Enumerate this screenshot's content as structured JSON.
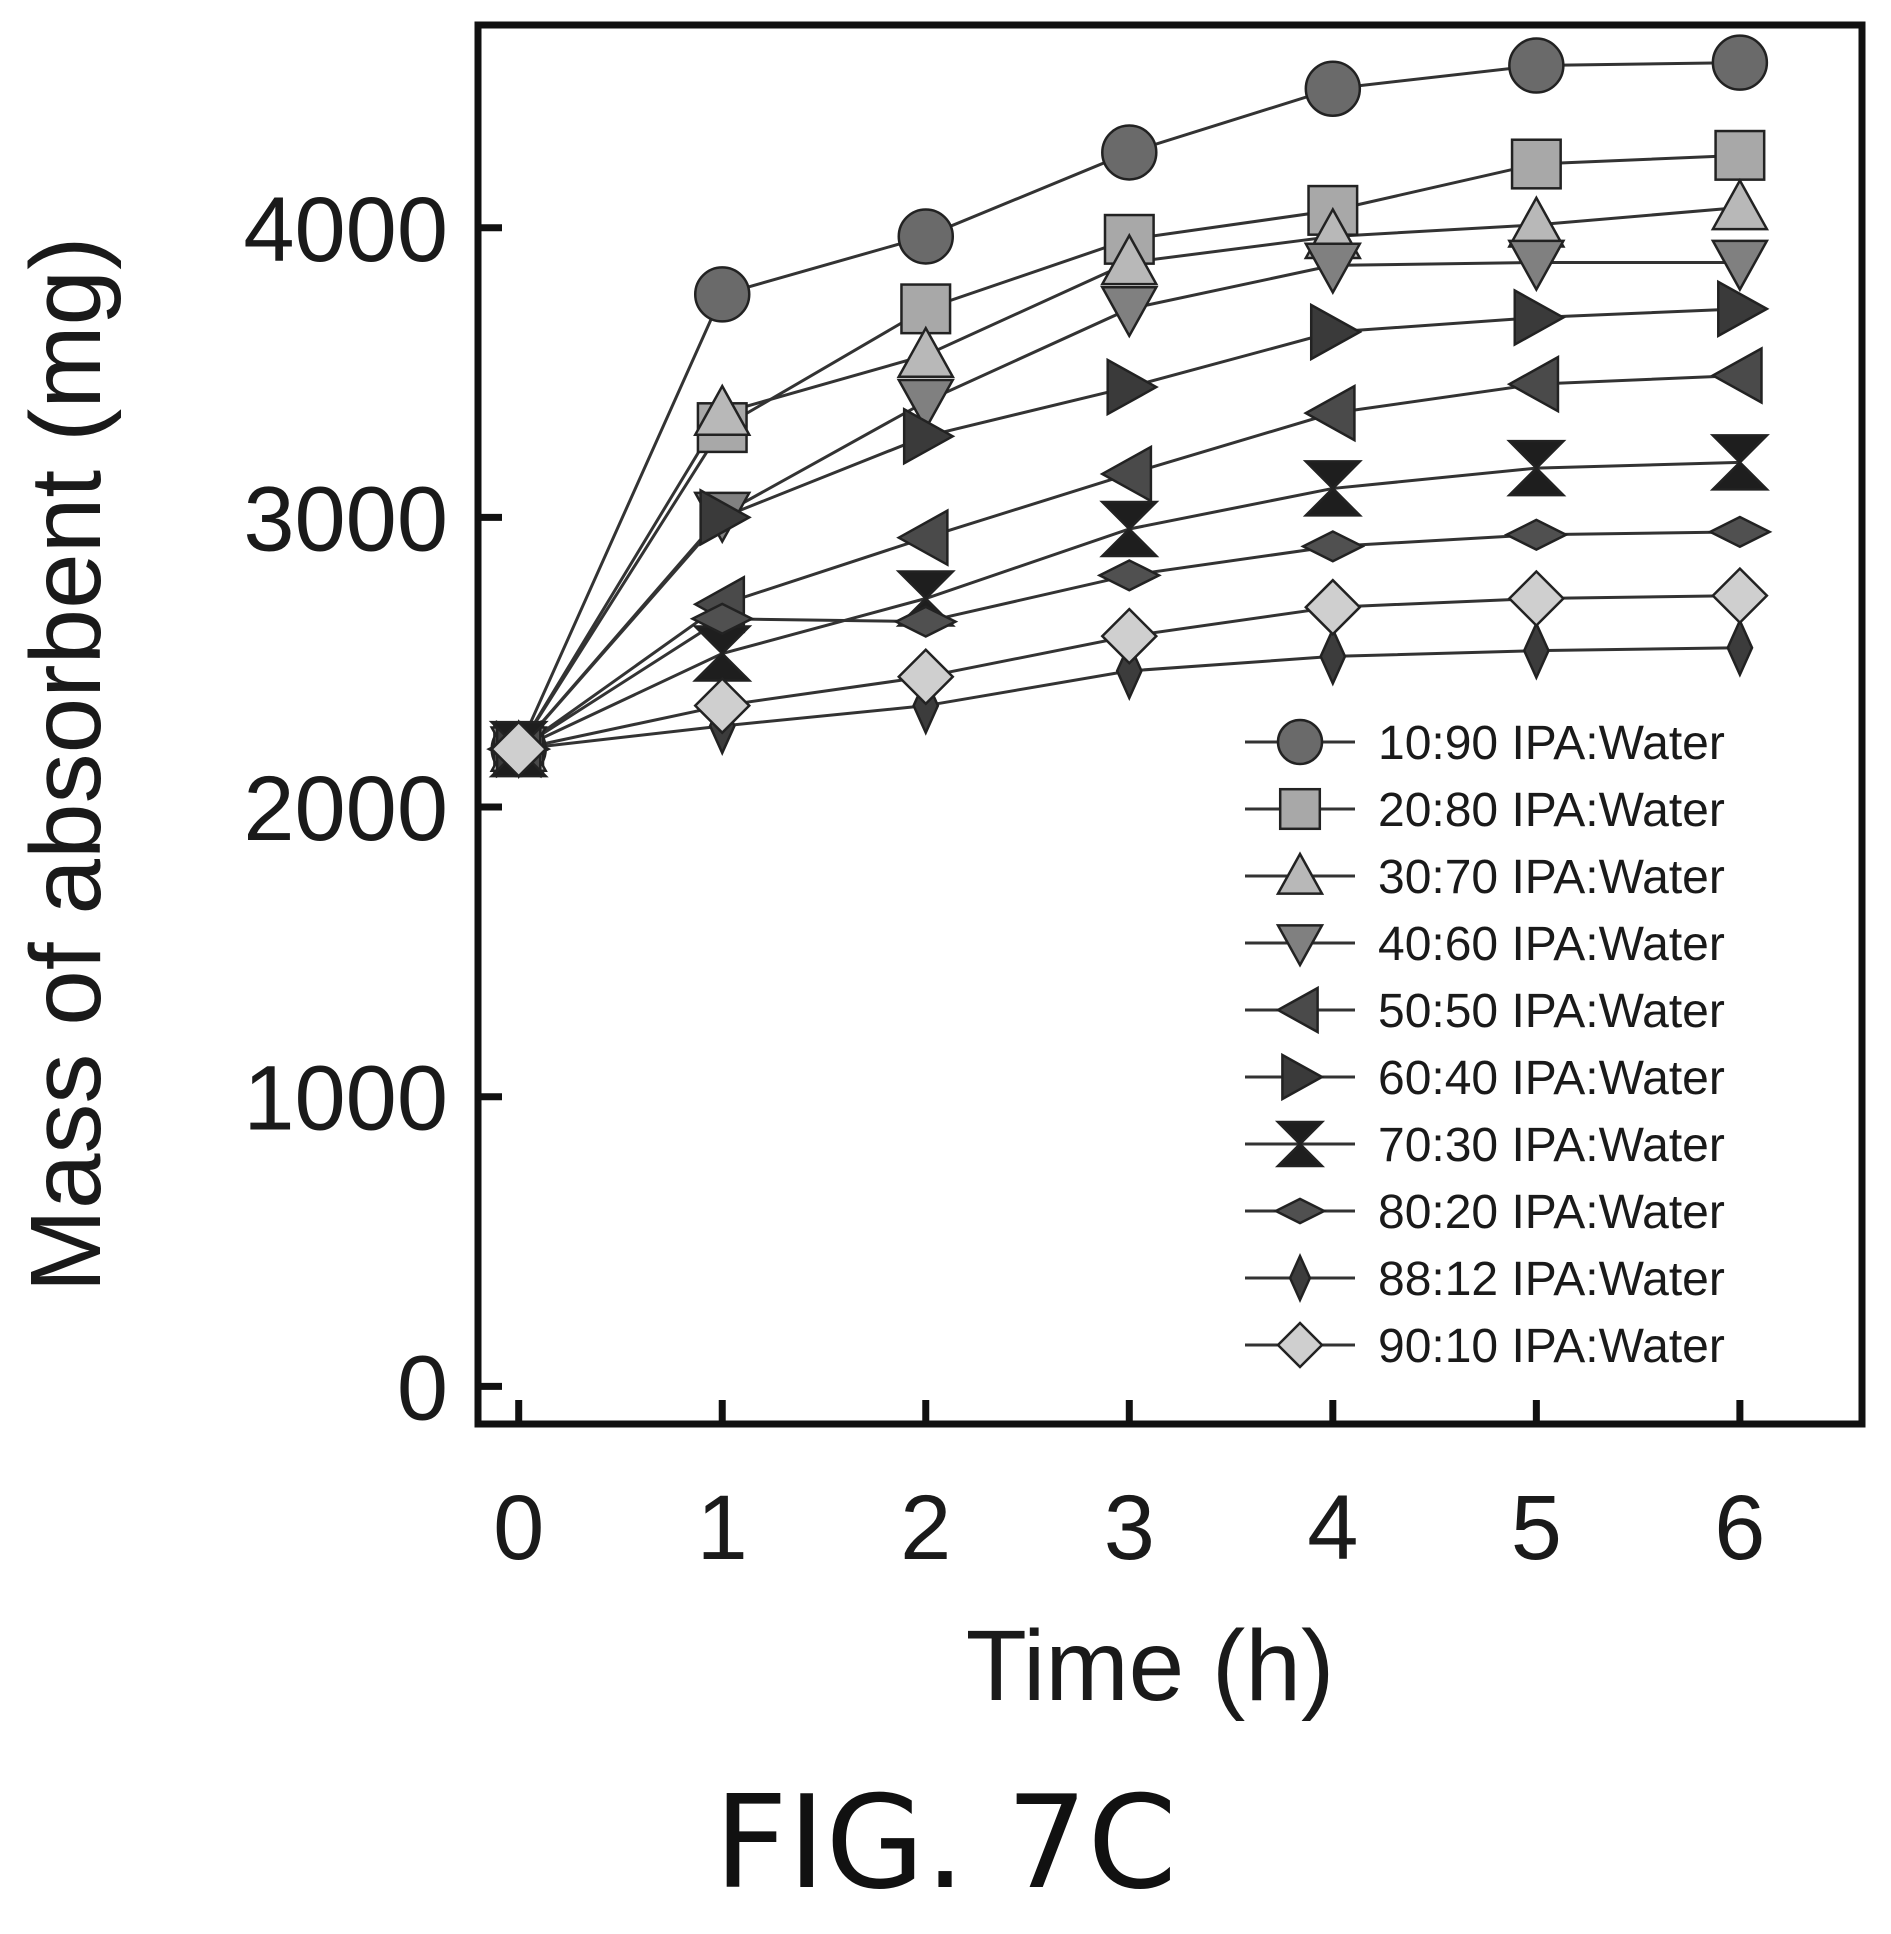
{
  "figure_label": "FIG. 7C",
  "chart_data": {
    "type": "line",
    "xlabel": "Time (h)",
    "ylabel": "Mass of absorbent (mg)",
    "xlim": [
      -0.2,
      6.6
    ],
    "ylim": [
      -130,
      4700
    ],
    "x_ticks": [
      0,
      1,
      2,
      3,
      4,
      5,
      6
    ],
    "y_ticks": [
      0,
      1000,
      2000,
      3000,
      4000
    ],
    "grid": false,
    "legend_position": "bottom-right",
    "x": [
      0,
      1,
      2,
      3,
      4,
      5,
      6
    ],
    "series": [
      {
        "name": "10:90 IPA:Water",
        "marker": "circle",
        "color": "#6a6a6a",
        "values": [
          2200,
          3770,
          3970,
          4260,
          4480,
          4560,
          4570
        ]
      },
      {
        "name": "20:80 IPA:Water",
        "marker": "square",
        "color": "#a8a8a8",
        "values": [
          2200,
          3310,
          3720,
          3960,
          4060,
          4220,
          4250
        ]
      },
      {
        "name": "30:70 IPA:Water",
        "marker": "triangle-up",
        "color": "#b8b8b8",
        "values": [
          2200,
          3360,
          3560,
          3880,
          3970,
          4010,
          4070
        ]
      },
      {
        "name": "40:60 IPA:Water",
        "marker": "triangle-down",
        "color": "#808080",
        "values": [
          2200,
          3010,
          3400,
          3720,
          3870,
          3880,
          3880
        ]
      },
      {
        "name": "50:50 IPA:Water",
        "marker": "triangle-left",
        "color": "#4a4a4a",
        "values": [
          2200,
          2700,
          2930,
          3150,
          3360,
          3460,
          3490
        ]
      },
      {
        "name": "60:40 IPA:Water",
        "marker": "triangle-right",
        "color": "#3a3a3a",
        "values": [
          2200,
          3000,
          3280,
          3450,
          3640,
          3690,
          3720
        ]
      },
      {
        "name": "70:30 IPA:Water",
        "marker": "hourglass",
        "color": "#1e1e1e",
        "values": [
          2200,
          2530,
          2720,
          2960,
          3100,
          3170,
          3190
        ]
      },
      {
        "name": "80:20 IPA:Water",
        "marker": "wide-diamond",
        "color": "#505050",
        "values": [
          2200,
          2650,
          2640,
          2800,
          2900,
          2940,
          2950
        ]
      },
      {
        "name": "88:12 IPA:Water",
        "marker": "thin-diamond",
        "color": "#3c3c3c",
        "values": [
          2200,
          2280,
          2350,
          2470,
          2520,
          2540,
          2550
        ]
      },
      {
        "name": "90:10 IPA:Water",
        "marker": "diamond",
        "color": "#cfcfcf",
        "values": [
          2200,
          2350,
          2450,
          2590,
          2690,
          2720,
          2730
        ]
      }
    ]
  }
}
